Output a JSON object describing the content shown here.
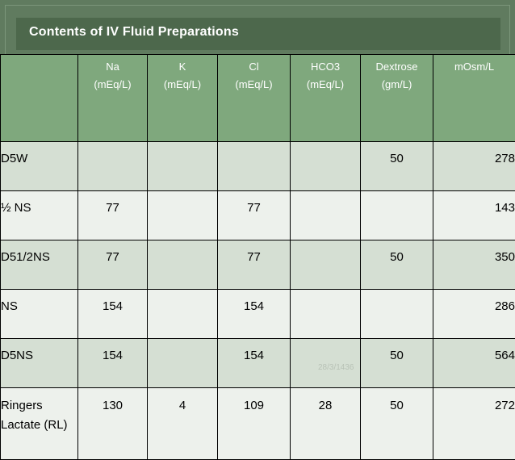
{
  "title": "Contents of IV Fluid Preparations",
  "columns": [
    "",
    "Na\n(mEq/L)",
    "K\n(mEq/L)",
    "Cl\n(mEq/L)",
    "HCO3\n(mEq/L)",
    "Dextrose\n(gm/L)",
    "mOsm/L"
  ],
  "column_lines": [
    [],
    [
      "Na",
      "(mEq/L)"
    ],
    [
      "K",
      "(mEq/L)"
    ],
    [
      "Cl",
      "(mEq/L)"
    ],
    [
      "HCO3",
      "(mEq/L)"
    ],
    [
      "Dextrose",
      "(gm/L)"
    ],
    [
      "mOsm/L"
    ]
  ],
  "rows": [
    [
      "D5W",
      "",
      "",
      "",
      "",
      "50",
      "278"
    ],
    [
      "½ NS",
      "77",
      "",
      "77",
      "",
      "",
      "143"
    ],
    [
      "D51/2NS",
      "77",
      "",
      "77",
      "",
      "50",
      "350"
    ],
    [
      "NS",
      "154",
      "",
      "154",
      "",
      "",
      "286"
    ],
    [
      "D5NS",
      "154",
      "",
      "154",
      "",
      "50",
      "564"
    ],
    [
      "Ringers Lactate (RL)",
      "130",
      "4",
      "109",
      "28",
      "50",
      "272"
    ]
  ],
  "footer_date": "28/3/1436"
}
